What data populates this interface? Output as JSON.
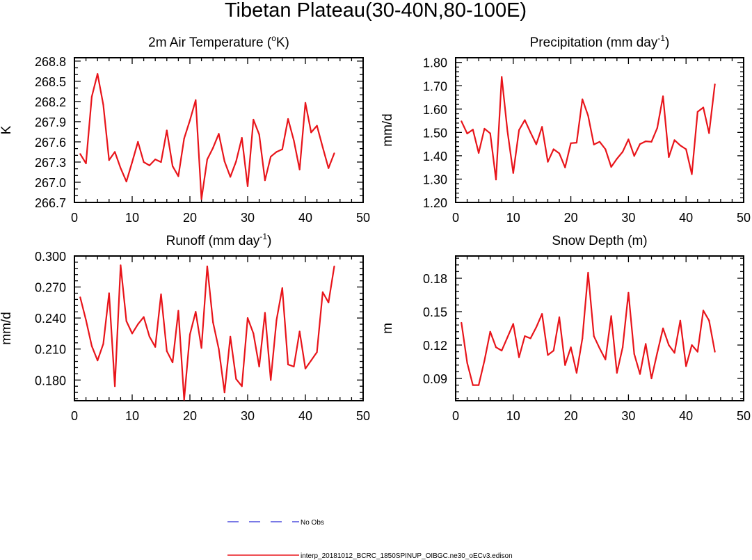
{
  "figure": {
    "title": "Tibetan Plateau(30-40N,80-100E)",
    "legend": [
      {
        "label": "No Obs",
        "color": "#2b2bd6",
        "style": "dashed"
      },
      {
        "label": "interp_20181012_BCRC_1850SPINUP_OIBGC.ne30_oECv3.edison",
        "color": "#e8141a",
        "style": "solid"
      }
    ]
  },
  "chart_data": [
    {
      "type": "line",
      "title": "2m Air Temperature (",
      "title_sup": "o",
      "title_tail": "K)",
      "ylabel": "K",
      "xlim": [
        0,
        50
      ],
      "ylim": [
        266.7,
        268.85
      ],
      "xticks": [
        "0",
        "10",
        "20",
        "30",
        "40",
        "50"
      ],
      "yticks": [
        "266.7",
        "267.0",
        "267.3",
        "267.6",
        "267.9",
        "268.2",
        "268.5",
        "268.8"
      ],
      "series": [
        {
          "color": "#e8141a",
          "x": [
            1,
            2,
            3,
            4,
            5,
            6,
            7,
            8,
            9,
            10,
            11,
            12,
            13,
            14,
            15,
            16,
            17,
            18,
            19,
            20,
            21,
            22,
            23,
            24,
            25,
            26,
            27,
            28,
            29,
            30,
            31,
            32,
            33,
            34,
            35,
            36,
            37,
            38,
            39,
            40,
            41,
            42,
            43,
            44,
            45
          ],
          "values": [
            267.42,
            267.28,
            268.27,
            268.61,
            268.15,
            267.33,
            267.45,
            267.21,
            267.01,
            267.3,
            267.6,
            267.3,
            267.25,
            267.34,
            267.3,
            267.77,
            267.24,
            267.09,
            267.65,
            267.92,
            268.22,
            266.75,
            267.34,
            267.51,
            267.72,
            267.31,
            267.08,
            267.31,
            267.66,
            266.94,
            267.93,
            267.71,
            267.03,
            267.38,
            267.45,
            267.49,
            267.94,
            267.62,
            267.19,
            268.18,
            267.74,
            267.84,
            267.52,
            267.21,
            267.43
          ]
        }
      ]
    },
    {
      "type": "line",
      "title": "Precipitation (mm day",
      "title_sup": "-1",
      "title_tail": ")",
      "ylabel": "mm/d",
      "xlim": [
        0,
        50
      ],
      "ylim": [
        1.2,
        1.82
      ],
      "xticks": [
        "0",
        "10",
        "20",
        "30",
        "40",
        "50"
      ],
      "yticks": [
        "1.20",
        "1.30",
        "1.40",
        "1.50",
        "1.60",
        "1.70",
        "1.80"
      ],
      "series": [
        {
          "color": "#e8141a",
          "x": [
            1,
            2,
            3,
            4,
            5,
            6,
            7,
            8,
            9,
            10,
            11,
            12,
            13,
            14,
            15,
            16,
            17,
            18,
            19,
            20,
            21,
            22,
            23,
            24,
            25,
            26,
            27,
            28,
            29,
            30,
            31,
            32,
            33,
            34,
            35,
            36,
            37,
            38,
            39,
            40,
            41,
            42,
            43,
            44,
            45
          ],
          "values": [
            1.548,
            1.495,
            1.512,
            1.412,
            1.516,
            1.496,
            1.298,
            1.738,
            1.505,
            1.326,
            1.51,
            1.553,
            1.5,
            1.449,
            1.524,
            1.374,
            1.428,
            1.41,
            1.35,
            1.454,
            1.456,
            1.642,
            1.572,
            1.448,
            1.46,
            1.428,
            1.352,
            1.387,
            1.417,
            1.47,
            1.399,
            1.45,
            1.462,
            1.46,
            1.519,
            1.655,
            1.394,
            1.467,
            1.444,
            1.428,
            1.321,
            1.588,
            1.607,
            1.497,
            1.706
          ]
        }
      ]
    },
    {
      "type": "line",
      "title": "Runoff (mm day",
      "title_sup": "-1",
      "title_tail": ")",
      "ylabel": "mm/d",
      "xlim": [
        0,
        50
      ],
      "ylim": [
        0.16,
        0.3
      ],
      "xticks": [
        "0",
        "10",
        "20",
        "30",
        "40",
        "50"
      ],
      "yticks": [
        "0.180",
        "0.210",
        "0.240",
        "0.270",
        "0.300"
      ],
      "series": [
        {
          "color": "#e8141a",
          "x": [
            1,
            2,
            3,
            4,
            5,
            6,
            7,
            8,
            9,
            10,
            11,
            12,
            13,
            14,
            15,
            16,
            17,
            18,
            19,
            20,
            21,
            22,
            23,
            24,
            25,
            26,
            27,
            28,
            29,
            30,
            31,
            32,
            33,
            34,
            35,
            36,
            37,
            38,
            39,
            40,
            41,
            42,
            43,
            44,
            45
          ],
          "values": [
            0.26,
            0.238,
            0.213,
            0.199,
            0.215,
            0.264,
            0.174,
            0.291,
            0.237,
            0.225,
            0.234,
            0.241,
            0.222,
            0.212,
            0.263,
            0.208,
            0.197,
            0.247,
            0.161,
            0.224,
            0.246,
            0.211,
            0.29,
            0.236,
            0.21,
            0.168,
            0.222,
            0.181,
            0.174,
            0.24,
            0.225,
            0.193,
            0.245,
            0.18,
            0.238,
            0.269,
            0.195,
            0.193,
            0.227,
            0.191,
            0.199,
            0.207,
            0.265,
            0.255,
            0.29
          ]
        }
      ]
    },
    {
      "type": "line",
      "title": "Snow Depth (m)",
      "title_sup": "",
      "title_tail": "",
      "ylabel": "m",
      "xlim": [
        0,
        50
      ],
      "ylim": [
        0.07,
        0.2
      ],
      "xticks": [
        "0",
        "10",
        "20",
        "30",
        "40",
        "50"
      ],
      "yticks": [
        "0.09",
        "0.12",
        "0.15",
        "0.18"
      ],
      "series": [
        {
          "color": "#e8141a",
          "x": [
            1,
            2,
            3,
            4,
            5,
            6,
            7,
            8,
            9,
            10,
            11,
            12,
            13,
            14,
            15,
            16,
            17,
            18,
            19,
            20,
            21,
            22,
            23,
            24,
            25,
            26,
            27,
            28,
            29,
            30,
            31,
            32,
            33,
            34,
            35,
            36,
            37,
            38,
            39,
            40,
            41,
            42,
            43,
            44,
            45
          ],
          "values": [
            0.14,
            0.104,
            0.084,
            0.084,
            0.106,
            0.132,
            0.118,
            0.115,
            0.127,
            0.139,
            0.109,
            0.128,
            0.126,
            0.136,
            0.148,
            0.111,
            0.115,
            0.145,
            0.102,
            0.118,
            0.095,
            0.126,
            0.185,
            0.128,
            0.117,
            0.107,
            0.146,
            0.095,
            0.118,
            0.167,
            0.112,
            0.094,
            0.121,
            0.09,
            0.113,
            0.135,
            0.12,
            0.113,
            0.142,
            0.101,
            0.12,
            0.114,
            0.151,
            0.142,
            0.114
          ]
        }
      ]
    }
  ]
}
